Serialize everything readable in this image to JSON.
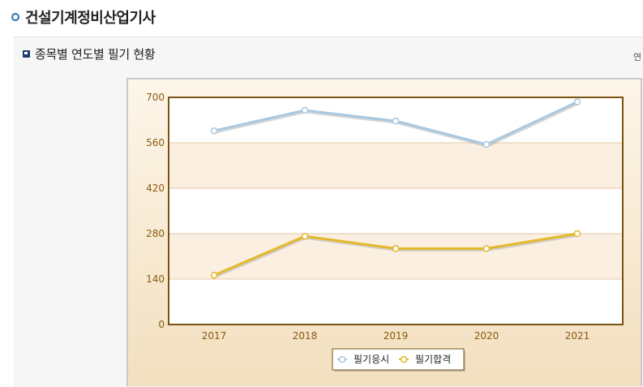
{
  "header": {
    "title": "건설기계정비산업기사"
  },
  "section": {
    "title": "종목별 연도별 필기 현황",
    "side_text": "연"
  },
  "colors": {
    "series_applicants": "#a8c8e0",
    "series_passed": "#e3b82a",
    "plot_border": "#7a5410",
    "band": "#fbefe2",
    "gridline": "#e2c9a8"
  },
  "chart_data": {
    "type": "line",
    "categories": [
      "2017",
      "2018",
      "2019",
      "2020",
      "2021"
    ],
    "series": [
      {
        "name": "필기응시",
        "values": [
          597,
          660,
          627,
          555,
          686
        ]
      },
      {
        "name": "필기합격",
        "values": [
          152,
          272,
          234,
          234,
          280
        ]
      }
    ],
    "ylim": [
      0,
      700
    ],
    "yticks": [
      0,
      140,
      280,
      420,
      560,
      700
    ],
    "grid": true,
    "legend": "bottom-center"
  }
}
